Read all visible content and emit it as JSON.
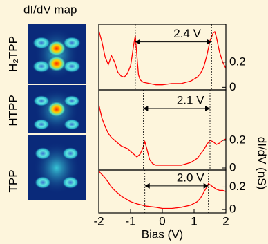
{
  "map": {
    "title": "dI/dV map",
    "labels": [
      "H₂TPP",
      "HTPP",
      "TPP"
    ]
  },
  "chart_data": [
    {
      "type": "line",
      "color": "#ff0000",
      "x": [
        -2,
        -1.9,
        -1.8,
        -1.7,
        -1.6,
        -1.5,
        -1.4,
        -1.3,
        -1.2,
        -1.1,
        -1.0,
        -0.95,
        -0.9,
        -0.85,
        -0.8,
        -0.75,
        -0.7,
        -0.6,
        -0.4,
        -0.2,
        0,
        0.3,
        0.6,
        0.9,
        1.1,
        1.2,
        1.3,
        1.4,
        1.5,
        1.6,
        1.65,
        1.7,
        1.8,
        1.9,
        2.0
      ],
      "values": [
        0.45,
        0.36,
        0.24,
        0.18,
        0.25,
        0.2,
        0.12,
        0.09,
        0.08,
        0.11,
        0.17,
        0.25,
        0.34,
        0.41,
        0.25,
        0.1,
        0.06,
        0.04,
        0.03,
        0.02,
        0.02,
        0.03,
        0.03,
        0.05,
        0.08,
        0.11,
        0.16,
        0.25,
        0.37,
        0.43,
        0.44,
        0.4,
        0.28,
        0.2,
        0.15
      ],
      "xlim": [
        -2,
        2
      ],
      "ylim": [
        -0.02,
        0.5
      ],
      "yticks": [
        0,
        0.2
      ],
      "annotation": {
        "text": "2.4 V",
        "x": [
          -0.85,
          1.55
        ],
        "y": 0.36
      }
    },
    {
      "type": "line",
      "color": "#ff0000",
      "x": [
        -2,
        -1.9,
        -1.8,
        -1.7,
        -1.6,
        -1.5,
        -1.4,
        -1.3,
        -1.2,
        -1.1,
        -1.0,
        -0.9,
        -0.8,
        -0.7,
        -0.6,
        -0.55,
        -0.5,
        -0.4,
        -0.3,
        -0.2,
        0,
        0.3,
        0.6,
        0.9,
        1.1,
        1.2,
        1.3,
        1.4,
        1.5,
        1.6,
        1.7,
        1.8,
        1.9,
        2.0
      ],
      "values": [
        0.46,
        0.36,
        0.3,
        0.25,
        0.22,
        0.2,
        0.18,
        0.16,
        0.15,
        0.14,
        0.12,
        0.1,
        0.08,
        0.1,
        0.15,
        0.19,
        0.15,
        0.06,
        0.03,
        0.02,
        0.02,
        0.02,
        0.02,
        0.04,
        0.07,
        0.1,
        0.13,
        0.17,
        0.2,
        0.19,
        0.17,
        0.18,
        0.2,
        0.21
      ],
      "xlim": [
        -2,
        2
      ],
      "ylim": [
        -0.015,
        0.565
      ],
      "yticks": [
        0,
        0.2
      ],
      "ylabel": "dI/dV (nS)",
      "annotation": {
        "text": "2.1 V",
        "x": [
          -0.6,
          1.5
        ],
        "y": 0.43
      }
    },
    {
      "type": "line",
      "color": "#ff0000",
      "x": [
        -2,
        -1.9,
        -1.8,
        -1.7,
        -1.6,
        -1.5,
        -1.3,
        -1.0,
        -0.8,
        -0.5,
        -0.2,
        0,
        0.3,
        0.6,
        0.9,
        1.1,
        1.2,
        1.3,
        1.4,
        1.45,
        1.5,
        1.6,
        1.7,
        1.8,
        1.9,
        2.0
      ],
      "values": [
        0.34,
        0.31,
        0.28,
        0.24,
        0.2,
        0.17,
        0.12,
        0.07,
        0.05,
        0.03,
        0.02,
        0.01,
        0.01,
        0.02,
        0.04,
        0.07,
        0.1,
        0.15,
        0.2,
        0.23,
        0.22,
        0.2,
        0.18,
        0.17,
        0.17,
        0.16
      ],
      "xlim": [
        -2,
        2
      ],
      "ylim": [
        -0.03,
        0.35
      ],
      "yticks": [
        0,
        0.2
      ],
      "xticks": [
        -2,
        -1,
        0,
        1,
        2
      ],
      "xlabel": "Bias (V)",
      "annotation": {
        "text": "2.0 V",
        "x": [
          -0.55,
          1.45
        ],
        "y": 0.21
      }
    }
  ]
}
